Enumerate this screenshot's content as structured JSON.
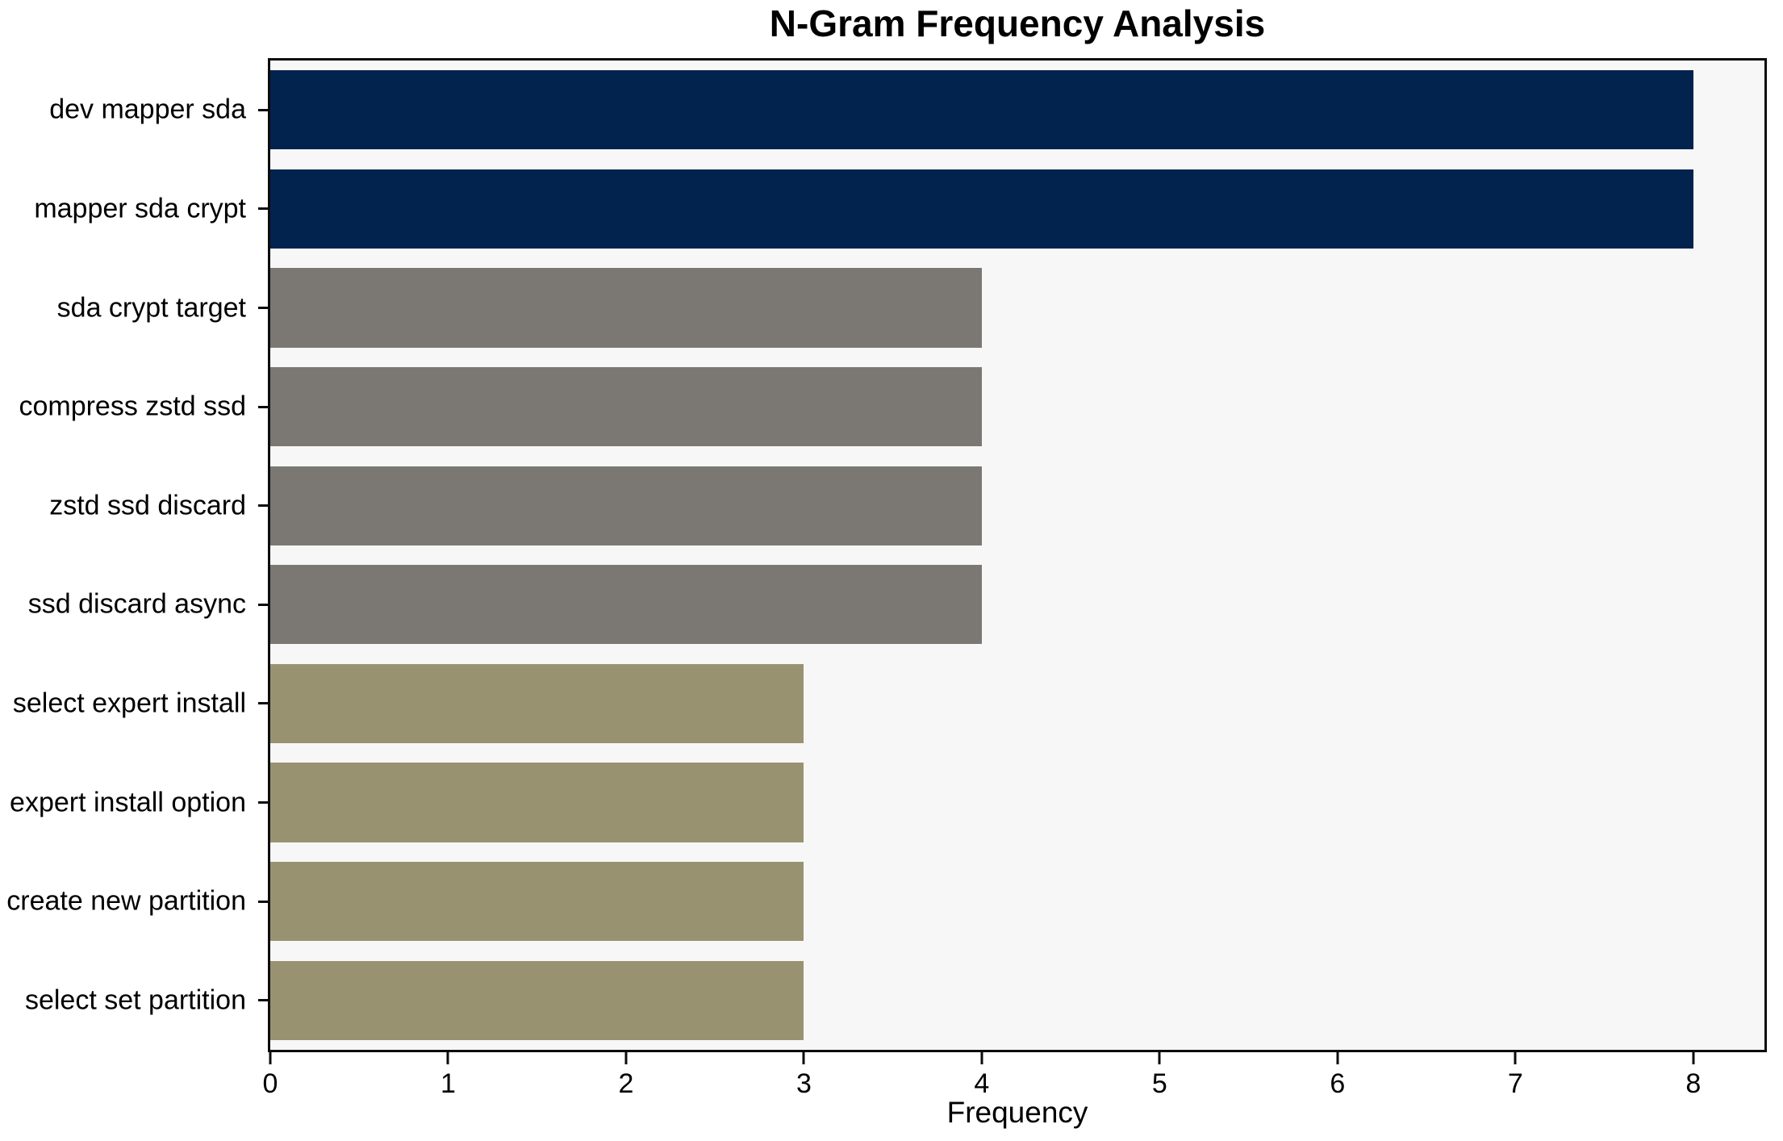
{
  "chart_data": {
    "type": "bar",
    "orientation": "horizontal",
    "title": "N-Gram Frequency Analysis",
    "xlabel": "Frequency",
    "ylabel": "",
    "categories": [
      "dev mapper sda",
      "mapper sda crypt",
      "sda crypt target",
      "compress zstd ssd",
      "zstd ssd discard",
      "ssd discard async",
      "select expert install",
      "expert install option",
      "create new partition",
      "select set partition"
    ],
    "values": [
      8,
      8,
      4,
      4,
      4,
      4,
      3,
      3,
      3,
      3
    ],
    "bar_colors": [
      "#02234d",
      "#02234d",
      "#7b7873",
      "#7b7873",
      "#7b7873",
      "#7b7873",
      "#999271",
      "#999271",
      "#999271",
      "#999271"
    ],
    "x_ticks": [
      0,
      1,
      2,
      3,
      4,
      5,
      6,
      7,
      8
    ],
    "xlim": [
      0,
      8.4
    ],
    "grid": false,
    "legend": "none",
    "colors": {
      "plot_background": "#f7f7f7",
      "figure_background": "#ffffff",
      "spine": "#0c0c0c",
      "navy": "#02234d",
      "gray": "#7b7873",
      "olive": "#999271"
    }
  }
}
